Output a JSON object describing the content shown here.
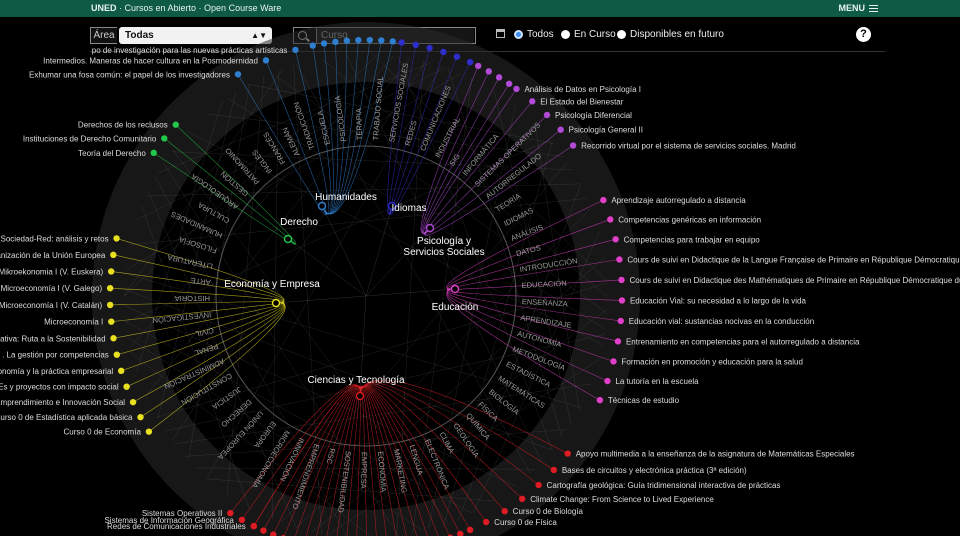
{
  "topbar": {
    "brand_bold": "UNED",
    "brand_rest": " · Cursos en Abierto · Open Course Ware",
    "menu_label": "MENU"
  },
  "filters": {
    "area_label": "Área",
    "area_value": "Todas",
    "search_placeholder": "Curso",
    "radios": [
      {
        "label": "Todos",
        "checked": true
      },
      {
        "label": "En Curso",
        "checked": false
      },
      {
        "label": "Disponibles en futuro",
        "checked": false
      }
    ],
    "help": "?"
  },
  "colors": {
    "humanidades": "#2f7fd0",
    "idiomas": "#2e2ecc",
    "psicologia": "#b24ad8",
    "educacion": "#e040c8",
    "ciencias": "#dd1c24",
    "economia": "#e8e020",
    "derecho": "#22c84a"
  },
  "categories": [
    {
      "name": "Humanidades",
      "key": "humanidades"
    },
    {
      "name": "Idiomas",
      "key": "idiomas"
    },
    {
      "name": "Psicología y",
      "name2": "Servicios Sociales",
      "key": "psicologia"
    },
    {
      "name": "Educación",
      "key": "educacion"
    },
    {
      "name": "Ciencias y Tecnología",
      "key": "ciencias"
    },
    {
      "name": "Economía y Empresa",
      "key": "economia"
    },
    {
      "name": "Derecho",
      "key": "derecho"
    }
  ],
  "outer_courses": {
    "left_top": [
      "Exhumar una fosa común: el papel de los investigadores",
      "Intermedios. Maneras de hacer cultura en la Posmodernidad",
      "po de investigación para las nuevas prácticas artísticas"
    ],
    "left_derecho": [
      "Teoría del Derecho",
      "Instituciones de Derecho Comunitario",
      "Derechos de los reclusos"
    ],
    "left_economia": [
      "en la Sociedad-Red: análisis y retos",
      "Organización de la Unión Europea",
      "Mikroekonomia I (V. Euskera)",
      "Microeconomía I (V. Galego)",
      "Microeconomía I (V. Catalán)",
      "Microeconomía I",
      "orativa: Ruta a la Sostenibilidad",
      ". La gestión por competencias",
      "conomía y la práctica empresarial",
      "YMEs y proyectos con impacto social",
      "Emprendimiento e Innovación Social",
      "Curso 0 de Estadística aplicada básica",
      "Curso 0 de Economía"
    ],
    "left_ciencias": [
      "Sistemas Operativos II",
      "Sistemas de Información Geográfica",
      "Redes de Comunicaciones Industriales"
    ],
    "right_psicologia": [
      "Análisis de Datos en Psicología I",
      "El Estado del Bienestar",
      "Psicología Diferencial",
      "Psicología General II",
      "Recorrido virtual por el sistema de servicios sociales. Madrid"
    ],
    "right_educacion": [
      "Aprendizaje autorregulado a distancia",
      "Competencias genéricas en información",
      "Competencias para trabajar en equipo",
      "Cours de suivi en Didactique de la Langue Française de Primaire en République Démocratique du Co",
      "Cours de suivi en Didactique des Mathématiques de Primaire en République Démocratique du Congo",
      "Educación Vial: su necesidad a lo largo de la vida",
      "Educación vial: sustancias nocivas en la conducción",
      "Entrenamiento en competencias para el autorregulado a distancia",
      "Formación en promoción y educación para la salud",
      "La tutoría en la escuela",
      "Técnicas de estudio"
    ],
    "right_ciencias": [
      "Apoyo multimedia a la enseñanza de la asignatura de Matemáticas Especiales",
      "Bases de circuitos y electrónica práctica (3ª edición)",
      "Cartografía geológica: Guía tridimensional interactiva de prácticas",
      "Climate Change: From Science to Lived Experience",
      "Curso 0 de Biología",
      "Curso 0 de Física"
    ]
  },
  "inner_terms": [
    "HISTORIA",
    "ARTE",
    "LITERATURA",
    "FILOSOFÍA",
    "HUMANIDADES",
    "CULTURA",
    "ARQUEOLOGÍA",
    "GESTIÓN",
    "PATRIMONIO",
    "INGLÉS",
    "FRANCÉS",
    "ALEMÁN",
    "TRADUCCIÓN",
    "ESCUELA",
    "PSICOLOGÍA",
    "TERAPIA",
    "TRABAJO SOCIAL",
    "SERVICIOS SOCIALES",
    "REDES",
    "COMUNICACIONES",
    "INDUSTRIAL",
    "SIG",
    "INFORMÁTICA",
    "SISTEMAS OPERATIVOS",
    "AUTORREGULADO",
    "TEORÍA",
    "IDIOMAS",
    "ANÁLISIS",
    "DATOS",
    "INTRODUCCIÓN",
    "EDUCACIÓN",
    "ENSEÑANZA",
    "APRENDIZAJE",
    "AUTONOMÍA",
    "METODOLOGÍA",
    "ESTADÍSTICA",
    "MATEMÁTICAS",
    "BIOLOGÍA",
    "FÍSICA",
    "QUÍMICA",
    "GEOLOGÍA",
    "CLIMA",
    "ELECTRÓNICA",
    "LENGUA",
    "MARKETING",
    "ECONOMÍA",
    "EMPRESA",
    "SOSTENIBILIDAD",
    "RSC",
    "EMPRENDIMIENTO",
    "INNOVACIÓN",
    "MICROECONOMÍA",
    "EUROPA",
    "UNIÓN EUROPEA",
    "DERECHO",
    "JUSTICIA",
    "CONSTITUCIÓN",
    "ADMINISTRACIÓN",
    "PENAL",
    "CIVIL",
    "INVESTIGACIÓN"
  ]
}
